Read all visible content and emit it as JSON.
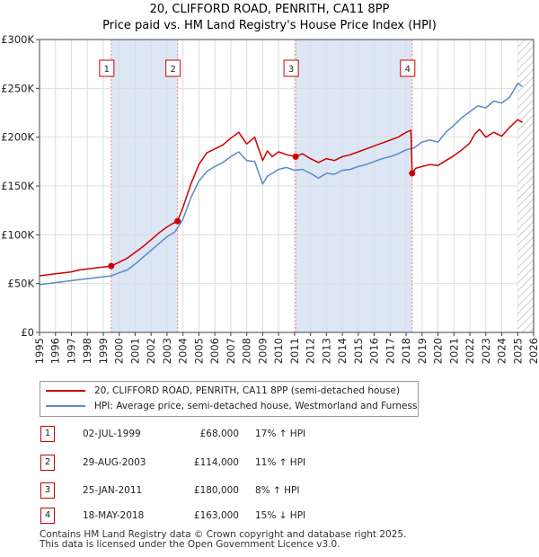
{
  "chart_data": {
    "type": "line",
    "title": "20, CLIFFORD ROAD, PENRITH, CA11 8PP",
    "subtitle": "Price paid vs. HM Land Registry's House Price Index (HPI)",
    "xlim": [
      1995,
      2026
    ],
    "ylim": [
      0,
      300000
    ],
    "y_ticks": [
      0,
      50000,
      100000,
      150000,
      200000,
      250000,
      300000
    ],
    "y_tick_labels": [
      "£0",
      "£50K",
      "£100K",
      "£150K",
      "£200K",
      "£250K",
      "£300K"
    ],
    "x_ticks": [
      1995,
      1996,
      1997,
      1998,
      1999,
      2000,
      2001,
      2002,
      2003,
      2004,
      2005,
      2006,
      2007,
      2008,
      2009,
      2010,
      2011,
      2012,
      2013,
      2014,
      2015,
      2016,
      2017,
      2018,
      2019,
      2020,
      2021,
      2022,
      2023,
      2024,
      2025,
      2026
    ],
    "x_tick_labels": [
      "1995",
      "1996",
      "1997",
      "1998",
      "1999",
      "2000",
      "2001",
      "2002",
      "2003",
      "2004",
      "2005",
      "2006",
      "2007",
      "2008",
      "2009",
      "2010",
      "2011",
      "2012",
      "2013",
      "2014",
      "2015",
      "2016",
      "2017",
      "2018",
      "2019",
      "2020",
      "2021",
      "2022",
      "2023",
      "2024",
      "2025",
      "2026"
    ],
    "shaded_periods": [
      [
        1999.5,
        2003.66
      ],
      [
        2011.07,
        2018.38
      ]
    ],
    "future_hatch_start": 2025.0,
    "colors": {
      "property": "#cc0000",
      "hpi": "#5b8ac6",
      "shade": "#dce6f5",
      "grid": "#dddddd",
      "vline": "#e88888"
    },
    "series": [
      {
        "name": "20, CLIFFORD ROAD, PENRITH, CA11 8PP (semi-detached house)",
        "color": "#cc0000",
        "x": [
          1995.0,
          1995.5,
          1996.0,
          1996.5,
          1997.0,
          1997.5,
          1998.0,
          1998.5,
          1999.0,
          1999.5,
          2000.0,
          2000.5,
          2001.0,
          2001.5,
          2002.0,
          2002.5,
          2003.0,
          2003.3,
          2003.66,
          2004.0,
          2004.5,
          2005.0,
          2005.5,
          2006.0,
          2006.5,
          2007.0,
          2007.5,
          2008.0,
          2008.5,
          2009.0,
          2009.3,
          2009.6,
          2010.0,
          2010.5,
          2011.07,
          2011.5,
          2012.0,
          2012.5,
          2013.0,
          2013.5,
          2014.0,
          2014.5,
          2015.0,
          2015.5,
          2016.0,
          2016.5,
          2017.0,
          2017.5,
          2018.0,
          2018.3,
          2018.38,
          2018.6,
          2019.0,
          2019.5,
          2020.0,
          2020.5,
          2021.0,
          2021.5,
          2022.0,
          2022.3,
          2022.6,
          2023.0,
          2023.5,
          2024.0,
          2024.5,
          2025.0,
          2025.3
        ],
        "values": [
          58000,
          59000,
          60000,
          61000,
          62000,
          64000,
          65000,
          66000,
          67000,
          68000,
          72000,
          76000,
          82000,
          88000,
          95000,
          102000,
          108000,
          111000,
          114000,
          128000,
          152000,
          172000,
          184000,
          188000,
          192000,
          199000,
          205000,
          193000,
          200000,
          176000,
          186000,
          180000,
          185000,
          182000,
          180000,
          183000,
          178000,
          174000,
          178000,
          176000,
          180000,
          182000,
          185000,
          188000,
          191000,
          194000,
          197000,
          200000,
          205000,
          207000,
          163000,
          168000,
          170000,
          172000,
          171000,
          176000,
          181000,
          187000,
          194000,
          203000,
          208000,
          200000,
          205000,
          201000,
          210000,
          218000,
          215000
        ]
      },
      {
        "name": "HPI: Average price, semi-detached house, Westmorland and Furness",
        "color": "#5b8ac6",
        "x": [
          1995.0,
          1995.5,
          1996.0,
          1996.5,
          1997.0,
          1997.5,
          1998.0,
          1998.5,
          1999.0,
          1999.5,
          2000.0,
          2000.5,
          2001.0,
          2001.5,
          2002.0,
          2002.5,
          2003.0,
          2003.5,
          2004.0,
          2004.5,
          2005.0,
          2005.5,
          2006.0,
          2006.5,
          2007.0,
          2007.5,
          2008.0,
          2008.5,
          2009.0,
          2009.3,
          2009.6,
          2010.0,
          2010.5,
          2011.0,
          2011.5,
          2012.0,
          2012.5,
          2013.0,
          2013.5,
          2014.0,
          2014.5,
          2015.0,
          2015.5,
          2016.0,
          2016.5,
          2017.0,
          2017.5,
          2018.0,
          2018.5,
          2019.0,
          2019.5,
          2020.0,
          2020.5,
          2021.0,
          2021.5,
          2022.0,
          2022.5,
          2023.0,
          2023.5,
          2024.0,
          2024.5,
          2025.0,
          2025.3
        ],
        "values": [
          49000,
          50000,
          51000,
          52000,
          53000,
          54000,
          55000,
          56000,
          57000,
          58000,
          61000,
          64000,
          70000,
          77000,
          84000,
          91000,
          98000,
          103000,
          116000,
          138000,
          155000,
          165000,
          170000,
          174000,
          180000,
          185000,
          176000,
          175000,
          152000,
          160000,
          163000,
          167000,
          169000,
          166000,
          167000,
          163000,
          158000,
          163000,
          162000,
          166000,
          167000,
          170000,
          172000,
          175000,
          178000,
          180000,
          183000,
          187000,
          189000,
          195000,
          197000,
          195000,
          205000,
          212000,
          220000,
          226000,
          232000,
          230000,
          237000,
          235000,
          241000,
          255000,
          252000
        ]
      }
    ],
    "sales": [
      {
        "label": "1",
        "x": 1999.5,
        "value": 68000
      },
      {
        "label": "2",
        "x": 2003.66,
        "value": 114000
      },
      {
        "label": "3",
        "x": 2011.07,
        "value": 180000
      },
      {
        "label": "4",
        "x": 2018.38,
        "value": 163000
      }
    ]
  },
  "legend": {
    "property": "20, CLIFFORD ROAD, PENRITH, CA11 8PP (semi-detached house)",
    "hpi": "HPI: Average price, semi-detached house, Westmorland and Furness"
  },
  "table": [
    {
      "num": "1",
      "date": "02-JUL-1999",
      "price": "£68,000",
      "hpi": "17% ↑ HPI"
    },
    {
      "num": "2",
      "date": "29-AUG-2003",
      "price": "£114,000",
      "hpi": "11% ↑ HPI"
    },
    {
      "num": "3",
      "date": "25-JAN-2011",
      "price": "£180,000",
      "hpi": "8% ↑ HPI"
    },
    {
      "num": "4",
      "date": "18-MAY-2018",
      "price": "£163,000",
      "hpi": "15% ↓ HPI"
    }
  ],
  "footer": {
    "line1": "Contains HM Land Registry data © Crown copyright and database right 2025.",
    "line2": "This data is licensed under the Open Government Licence v3.0."
  }
}
